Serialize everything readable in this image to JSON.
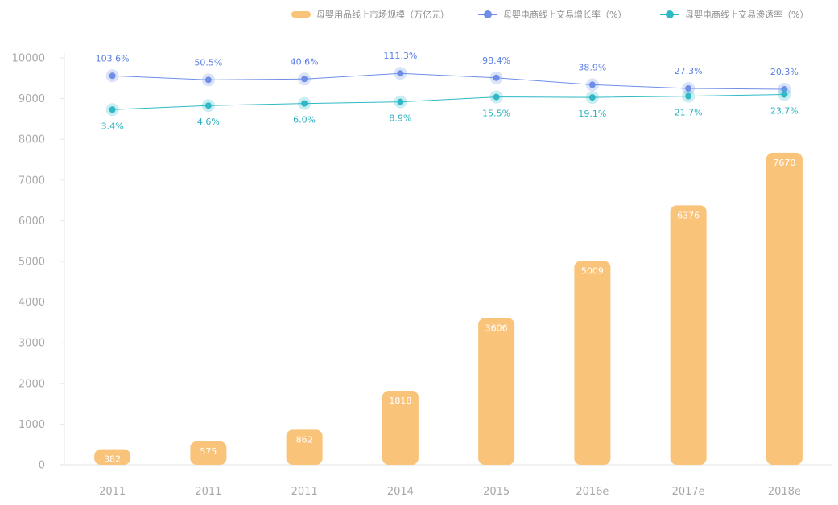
{
  "colors": {
    "bar": "#f9c37a",
    "growth_line": "#6f8ee8",
    "growth_label": "#5a7fe0",
    "penetration_line": "#2fb9c7",
    "penetration_label": "#2cb2bf",
    "axis_text": "#a8a8a8",
    "axis_line": "#e6e6e6"
  },
  "chart_data": {
    "type": "bar",
    "categories": [
      "2011",
      "2011",
      "2011",
      "2014",
      "2015",
      "2016e",
      "2017e",
      "2018e"
    ],
    "ylim": [
      0,
      10000
    ],
    "yticks": [
      0,
      1000,
      2000,
      3000,
      4000,
      5000,
      6000,
      7000,
      8000,
      9000,
      10000
    ],
    "grid": false,
    "legend_position": "top-right",
    "legend": [
      {
        "name": "母婴用品线上市场规模（万亿元）",
        "marker": "bar"
      },
      {
        "name": "母婴电商线上交易增长率（%）",
        "marker": "line-growth"
      },
      {
        "name": "母婴电商线上交易渗透率（%）",
        "marker": "line-penetration"
      }
    ],
    "series": [
      {
        "name": "母婴用品线上市场规模（万亿元）",
        "type": "bar",
        "values": [
          382,
          575,
          862,
          1818,
          3606,
          5009,
          6376,
          7670
        ],
        "labels": [
          "382",
          "575",
          "862",
          "1818",
          "3606",
          "5009",
          "6376",
          "7670"
        ]
      },
      {
        "name": "母婴电商线上交易增长率（%）",
        "type": "line",
        "values": [
          9560,
          9460,
          9480,
          9620,
          9510,
          9340,
          9250,
          9230
        ],
        "labels": [
          "103.6%",
          "50.5%",
          "40.6%",
          "111.3%",
          "98.4%",
          "38.9%",
          "27.3%",
          "20.3%"
        ]
      },
      {
        "name": "母婴电商线上交易渗透率（%）",
        "type": "line",
        "values": [
          8730,
          8830,
          8880,
          8920,
          9040,
          9030,
          9060,
          9100
        ],
        "labels": [
          "3.4%",
          "4.6%",
          "6.0%",
          "8.9%",
          "15.5%",
          "19.1%",
          "21.7%",
          "23.7%"
        ]
      }
    ]
  }
}
